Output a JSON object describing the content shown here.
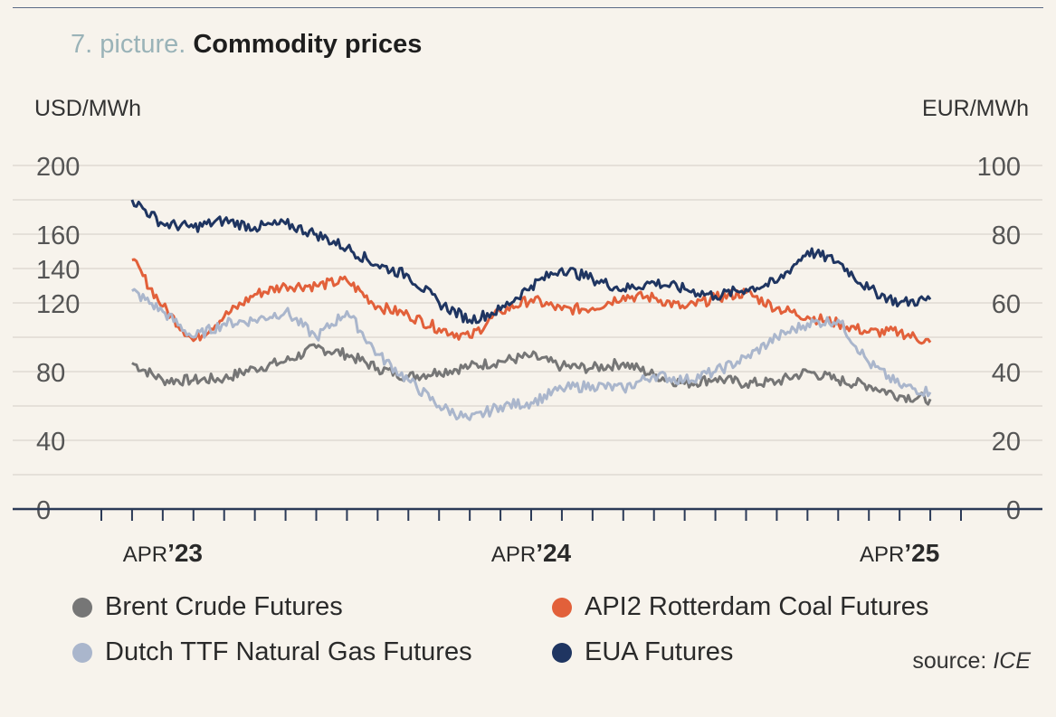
{
  "header": {
    "title_prefix": "7. picture.",
    "title": "Commodity prices",
    "unit_left": "USD/MWh",
    "unit_right": "EUR/MWh"
  },
  "footer": {
    "source_label": "source:",
    "source_name": "ICE"
  },
  "chart_data": {
    "type": "line",
    "y_left": {
      "label": "USD/MWh",
      "range": [
        0,
        200
      ],
      "ticks": [
        0,
        40,
        80,
        120,
        140,
        160,
        200
      ]
    },
    "y_right": {
      "label": "EUR/MWh",
      "range": [
        0,
        100
      ],
      "ticks": [
        0,
        20,
        40,
        60,
        80,
        100
      ]
    },
    "x_range": [
      "2023-02",
      "2025-06"
    ],
    "x_labels": [
      {
        "date": "2023-04",
        "month": "APR",
        "year": "’23"
      },
      {
        "date": "2024-04",
        "month": "APR",
        "year": "’24"
      },
      {
        "date": "2025-04",
        "month": "APR",
        "year": "’25"
      }
    ],
    "grid": true,
    "legend_position": "bottom",
    "series": [
      {
        "name": "Brent Crude Futures",
        "color": "#767676",
        "axis": "left",
        "points": [
          [
            "2023-03",
            85
          ],
          [
            "2023-04",
            75
          ],
          [
            "2023-05",
            75
          ],
          [
            "2023-06",
            76
          ],
          [
            "2023-07",
            82
          ],
          [
            "2023-08",
            86
          ],
          [
            "2023-09",
            94
          ],
          [
            "2023-10",
            90
          ],
          [
            "2023-11",
            82
          ],
          [
            "2023-12",
            77
          ],
          [
            "2024-01",
            80
          ],
          [
            "2024-02",
            83
          ],
          [
            "2024-03",
            86
          ],
          [
            "2024-04",
            89
          ],
          [
            "2024-05",
            83
          ],
          [
            "2024-06",
            82
          ],
          [
            "2024-07",
            85
          ],
          [
            "2024-08",
            78
          ],
          [
            "2024-09",
            73
          ],
          [
            "2024-10",
            76
          ],
          [
            "2024-11",
            73
          ],
          [
            "2024-12",
            74
          ],
          [
            "2025-01",
            80
          ],
          [
            "2025-02",
            75
          ],
          [
            "2025-03",
            72
          ],
          [
            "2025-04",
            66
          ],
          [
            "2025-05",
            64
          ]
        ]
      },
      {
        "name": "API2 Rotterdam Coal Futures",
        "color": "#e2603a",
        "axis": "left",
        "points": [
          [
            "2023-03",
            145
          ],
          [
            "2023-04",
            118
          ],
          [
            "2023-05",
            98
          ],
          [
            "2023-06",
            112
          ],
          [
            "2023-07",
            125
          ],
          [
            "2023-08",
            130
          ],
          [
            "2023-09",
            130
          ],
          [
            "2023-10",
            133
          ],
          [
            "2023-11",
            118
          ],
          [
            "2023-12",
            113
          ],
          [
            "2024-01",
            105
          ],
          [
            "2024-02",
            100
          ],
          [
            "2024-03",
            115
          ],
          [
            "2024-04",
            122
          ],
          [
            "2024-05",
            116
          ],
          [
            "2024-06",
            117
          ],
          [
            "2024-07",
            124
          ],
          [
            "2024-08",
            123
          ],
          [
            "2024-09",
            117
          ],
          [
            "2024-10",
            123
          ],
          [
            "2024-11",
            126
          ],
          [
            "2024-12",
            117
          ],
          [
            "2025-01",
            112
          ],
          [
            "2025-02",
            108
          ],
          [
            "2025-03",
            103
          ],
          [
            "2025-04",
            103
          ],
          [
            "2025-05",
            97
          ]
        ]
      },
      {
        "name": "Dutch TTF Natural Gas Futures",
        "color": "#aab6cc",
        "axis": "left",
        "points": [
          [
            "2023-03",
            127
          ],
          [
            "2023-04",
            115
          ],
          [
            "2023-05",
            100
          ],
          [
            "2023-06",
            108
          ],
          [
            "2023-07",
            110
          ],
          [
            "2023-08",
            115
          ],
          [
            "2023-09",
            100
          ],
          [
            "2023-10",
            115
          ],
          [
            "2023-11",
            90
          ],
          [
            "2023-12",
            75
          ],
          [
            "2024-01",
            60
          ],
          [
            "2024-02",
            52
          ],
          [
            "2024-03",
            60
          ],
          [
            "2024-04",
            62
          ],
          [
            "2024-05",
            70
          ],
          [
            "2024-06",
            72
          ],
          [
            "2024-07",
            70
          ],
          [
            "2024-08",
            78
          ],
          [
            "2024-09",
            75
          ],
          [
            "2024-10",
            80
          ],
          [
            "2024-11",
            88
          ],
          [
            "2024-12",
            100
          ],
          [
            "2025-01",
            108
          ],
          [
            "2025-02",
            110
          ],
          [
            "2025-03",
            85
          ],
          [
            "2025-04",
            72
          ],
          [
            "2025-05",
            68
          ]
        ]
      },
      {
        "name": "EUA Futures",
        "color": "#1f3561",
        "axis": "right",
        "points": [
          [
            "2023-03",
            90
          ],
          [
            "2023-04",
            83
          ],
          [
            "2023-05",
            82
          ],
          [
            "2023-06",
            84
          ],
          [
            "2023-07",
            82
          ],
          [
            "2023-08",
            83
          ],
          [
            "2023-09",
            80
          ],
          [
            "2023-10",
            76
          ],
          [
            "2023-11",
            71
          ],
          [
            "2023-12",
            68
          ],
          [
            "2024-01",
            60
          ],
          [
            "2024-02",
            55
          ],
          [
            "2024-03",
            58
          ],
          [
            "2024-04",
            65
          ],
          [
            "2024-05",
            70
          ],
          [
            "2024-06",
            67
          ],
          [
            "2024-07",
            64
          ],
          [
            "2024-08",
            66
          ],
          [
            "2024-09",
            64
          ],
          [
            "2024-10",
            62
          ],
          [
            "2024-11",
            64
          ],
          [
            "2024-12",
            66
          ],
          [
            "2025-01",
            75
          ],
          [
            "2025-02",
            72
          ],
          [
            "2025-03",
            64
          ],
          [
            "2025-04",
            60
          ],
          [
            "2025-05",
            61
          ]
        ]
      }
    ]
  }
}
